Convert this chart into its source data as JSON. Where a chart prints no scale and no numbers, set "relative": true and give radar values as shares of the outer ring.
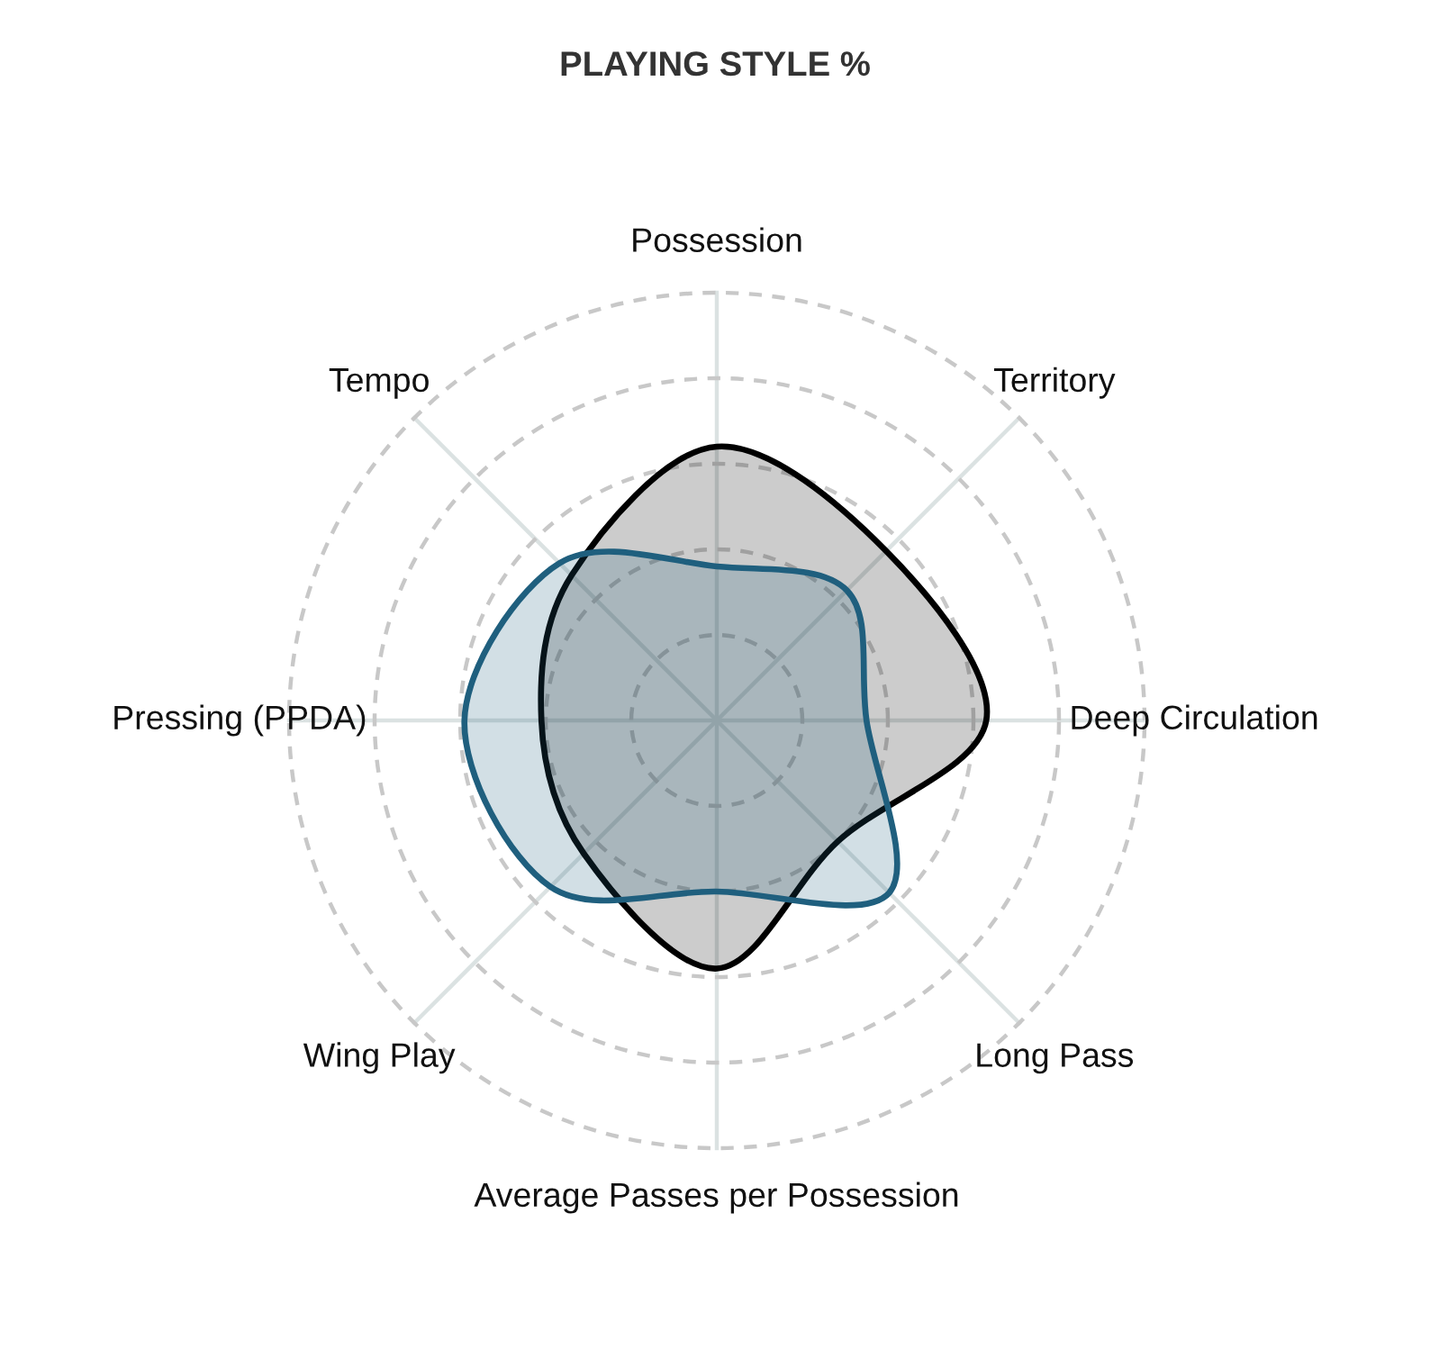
{
  "chart_data": {
    "type": "radar",
    "title": "PLAYING STYLE %",
    "relative": true,
    "grid": true,
    "line_style": "solid",
    "categories": [
      "Possession",
      "Territory",
      "Deep Circulation",
      "Long Pass",
      "Average Passes per Possession",
      "Wing Play",
      "Pressing (PPDA)",
      "Tempo"
    ],
    "series": [
      {
        "color": "#000000",
        "values": [
          0.64,
          0.56,
          0.63,
          0.4,
          0.58,
          0.44,
          0.41,
          0.48
        ]
      },
      {
        "color": "#1f5f7e",
        "values": [
          0.36,
          0.43,
          0.35,
          0.57,
          0.4,
          0.55,
          0.59,
          0.52
        ]
      }
    ]
  }
}
